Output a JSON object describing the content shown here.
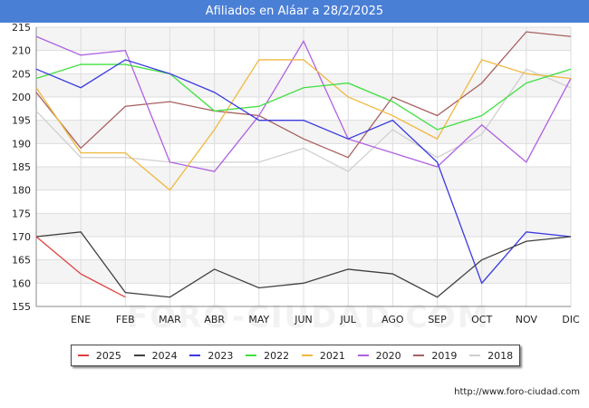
{
  "title": "Afiliados en Aláar a 28/2/2025",
  "watermark": "FORO-CIUDAD.COM",
  "credit": "http://www.foro-ciudad.com",
  "chart_data": {
    "type": "line",
    "title": "Afiliados en Aláar a 28/2/2025",
    "x": [
      "DIC_prev",
      "ENE",
      "FEB",
      "MAR",
      "ABR",
      "MAY",
      "JUN",
      "JUL",
      "AGO",
      "SEP",
      "OCT",
      "NOV",
      "DIC"
    ],
    "x_tick_labels": [
      "",
      "ENE",
      "FEB",
      "MAR",
      "ABR",
      "MAY",
      "JUN",
      "JUL",
      "AGO",
      "SEP",
      "OCT",
      "NOV",
      "DIC"
    ],
    "ylim": [
      155,
      215
    ],
    "yticks": [
      155,
      160,
      165,
      170,
      175,
      180,
      185,
      190,
      195,
      200,
      205,
      210,
      215
    ],
    "grid": true,
    "series": [
      {
        "name": "2018",
        "color": "#d0d0d0",
        "values": [
          197,
          187,
          187,
          186,
          186,
          186,
          189,
          184,
          193,
          187,
          192,
          206,
          202
        ]
      },
      {
        "name": "2019",
        "color": "#a86060",
        "values": [
          201,
          189,
          198,
          199,
          197,
          196,
          191,
          187,
          200,
          196,
          203,
          214,
          213
        ]
      },
      {
        "name": "2020",
        "color": "#b060e0",
        "values": [
          213,
          209,
          210,
          186,
          184,
          196,
          212,
          191,
          188,
          185,
          194,
          186,
          204
        ]
      },
      {
        "name": "2021",
        "color": "#f0b840",
        "values": [
          202,
          188,
          188,
          180,
          193,
          208,
          208,
          200,
          196,
          191,
          208,
          205,
          204
        ]
      },
      {
        "name": "2022",
        "color": "#40e040",
        "values": [
          204,
          207,
          207,
          205,
          197,
          198,
          202,
          203,
          199,
          193,
          196,
          203,
          206
        ]
      },
      {
        "name": "2023",
        "color": "#3a3ae0",
        "values": [
          206,
          202,
          208,
          205,
          201,
          195,
          195,
          191,
          195,
          186,
          160,
          171,
          170
        ]
      },
      {
        "name": "2024",
        "color": "#404040",
        "values": [
          170,
          171,
          158,
          157,
          163,
          159,
          160,
          163,
          162,
          157,
          165,
          169,
          170
        ]
      },
      {
        "name": "2025",
        "color": "#e04040",
        "values": [
          170,
          162,
          157,
          null,
          null,
          null,
          null,
          null,
          null,
          null,
          null,
          null,
          null
        ]
      }
    ],
    "legend": [
      "2025",
      "2024",
      "2023",
      "2022",
      "2021",
      "2020",
      "2019",
      "2018"
    ],
    "legend_colors": [
      "#e04040",
      "#404040",
      "#3a3ae0",
      "#40e040",
      "#f0b840",
      "#b060e0",
      "#a86060",
      "#d0d0d0"
    ]
  }
}
